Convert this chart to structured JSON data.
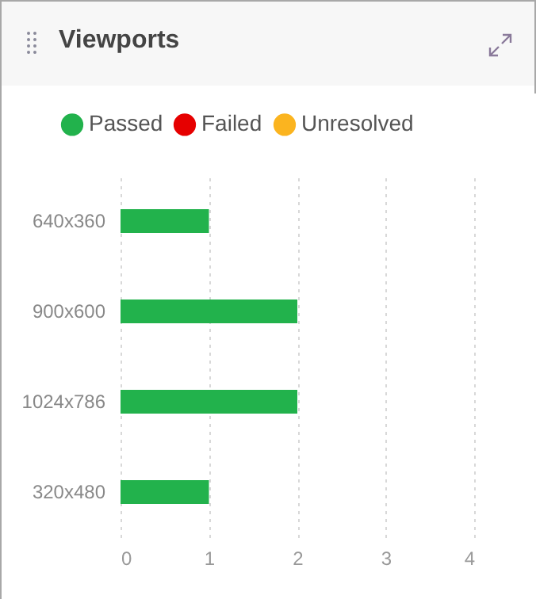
{
  "chart_data": {
    "type": "bar",
    "title": "Viewports",
    "orientation": "horizontal",
    "categories": [
      "640x360",
      "900x600",
      "1024x786",
      "320x480"
    ],
    "series": [
      {
        "name": "Passed",
        "color": "#22b24c",
        "values": [
          1,
          2,
          2,
          1
        ]
      },
      {
        "name": "Failed",
        "color": "#e60000",
        "values": [
          0,
          0,
          0,
          0
        ]
      },
      {
        "name": "Unresolved",
        "color": "#fbb41f",
        "values": [
          0,
          0,
          0,
          0
        ]
      }
    ],
    "xlim": [
      0,
      4
    ],
    "xticks": [
      0,
      1,
      2,
      3,
      4
    ],
    "grid": "x",
    "legend": "top"
  }
}
